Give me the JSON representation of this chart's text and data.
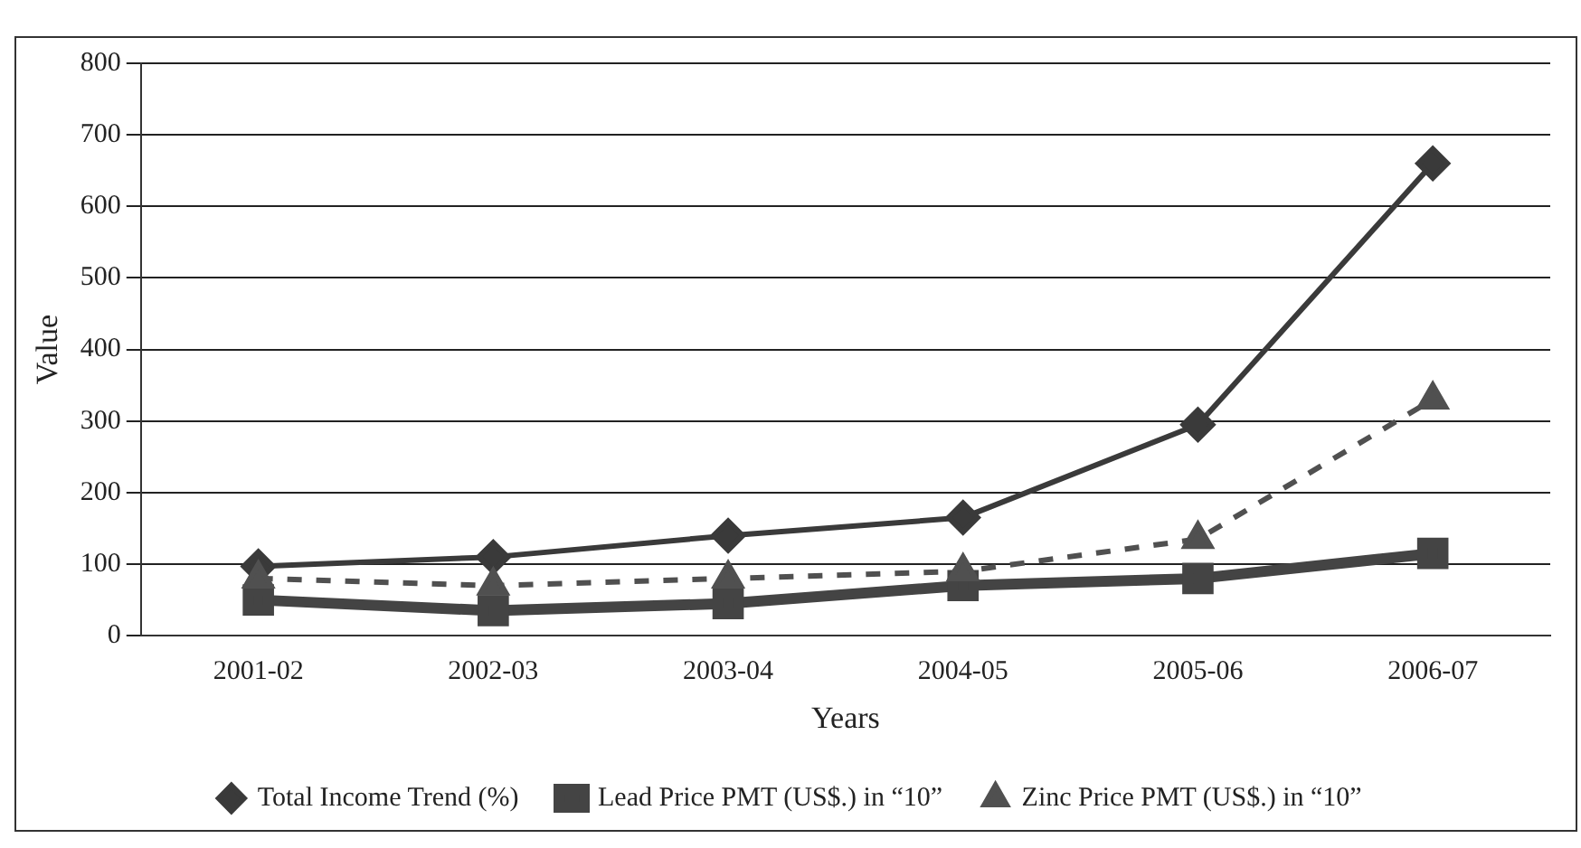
{
  "chart_data": {
    "type": "line",
    "xlabel": "Years",
    "ylabel": "Value",
    "categories": [
      "2001-02",
      "2002-03",
      "2003-04",
      "2004-05",
      "2005-06",
      "2006-07"
    ],
    "series": [
      {
        "name": "Total Income Trend (%)",
        "color": "#3a3a3a",
        "values": [
          97,
          110,
          140,
          165,
          295,
          660
        ],
        "marker": "diamond",
        "line_style": "solid"
      },
      {
        "name": "Lead Price PMT (US$.) in “10”",
        "color": "#444444",
        "values": [
          50,
          35,
          45,
          70,
          80,
          115
        ],
        "marker": "square",
        "line_style": "solid"
      },
      {
        "name": "Zinc Price PMT (US$.) in “10”",
        "color": "#505050",
        "values": [
          80,
          70,
          80,
          90,
          135,
          330
        ],
        "marker": "triangle",
        "line_style": "dashed"
      }
    ],
    "ylim": [
      0,
      800
    ],
    "yticks": [
      0,
      100,
      200,
      300,
      400,
      500,
      600,
      700,
      800
    ],
    "grid": "y",
    "legend": "bottom"
  }
}
